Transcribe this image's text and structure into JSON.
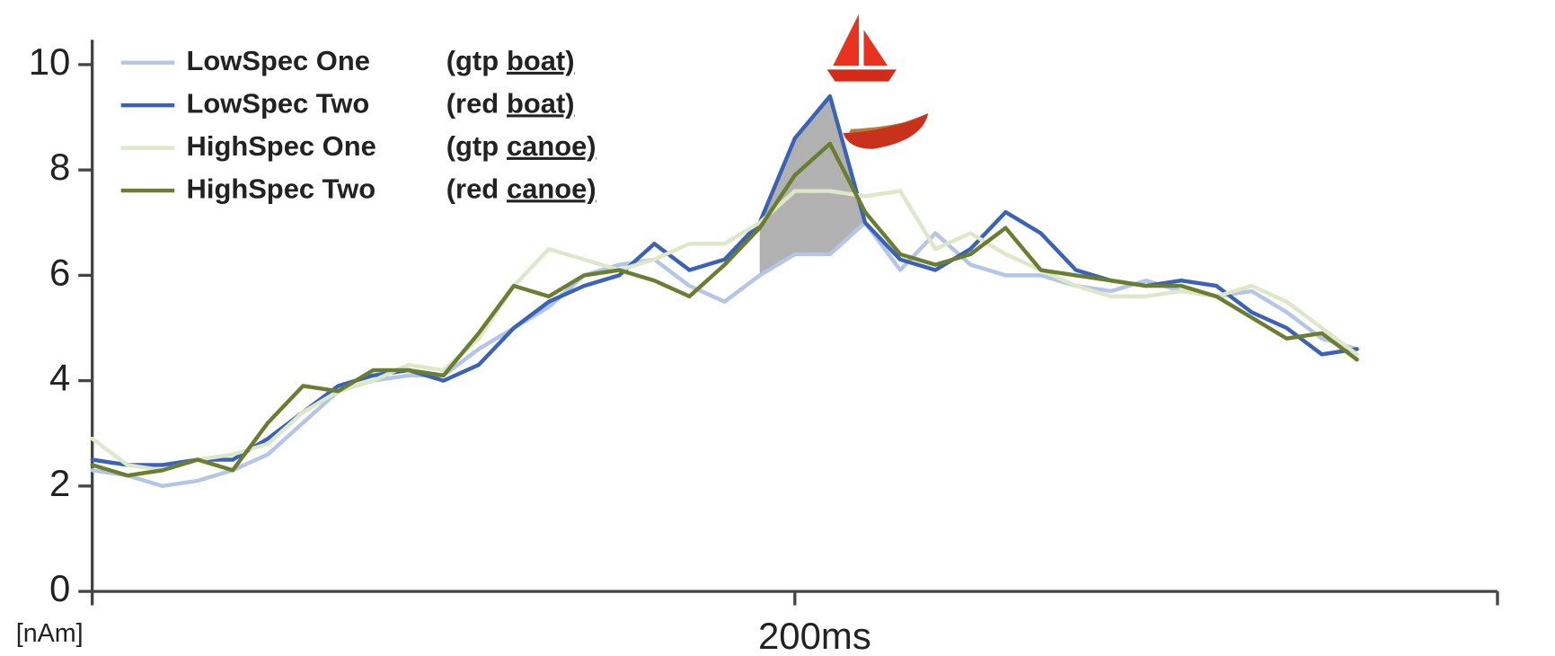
{
  "chart_data": {
    "type": "line",
    "y_unit_label": "[nAm]",
    "x": [
      0,
      10,
      20,
      30,
      40,
      50,
      60,
      70,
      80,
      90,
      100,
      110,
      120,
      130,
      140,
      150,
      160,
      170,
      180,
      190,
      200,
      210,
      220,
      230,
      240,
      250,
      260,
      270,
      280,
      290,
      300,
      310,
      320,
      330,
      340,
      350,
      360
    ],
    "xlim": [
      0,
      400
    ],
    "xticks": [
      {
        "value": 200,
        "label": "200ms"
      }
    ],
    "ylim": [
      0,
      10
    ],
    "yticks": [
      0,
      2,
      4,
      6,
      8,
      10
    ],
    "series": [
      {
        "name": "LowSpec One",
        "tag": "(gtp",
        "object": "boat)",
        "color": "#b4c6e8",
        "values": [
          2.3,
          2.2,
          2.0,
          2.1,
          2.3,
          2.6,
          3.2,
          3.8,
          4.0,
          4.1,
          4.1,
          4.6,
          5.0,
          5.4,
          6.0,
          6.2,
          6.3,
          5.8,
          5.5,
          6.0,
          6.4,
          6.4,
          7.0,
          6.1,
          6.8,
          6.2,
          6.0,
          6.0,
          5.8,
          5.7,
          5.9,
          5.7,
          5.6,
          5.7,
          5.3,
          4.8,
          4.6
        ]
      },
      {
        "name": "LowSpec Two",
        "tag": "(red",
        "object": "boat)",
        "color": "#3a63b8",
        "values": [
          2.5,
          2.4,
          2.4,
          2.5,
          2.5,
          2.9,
          3.4,
          3.9,
          4.1,
          4.2,
          4.0,
          4.3,
          5.0,
          5.5,
          5.8,
          6.0,
          6.6,
          6.1,
          6.3,
          7.0,
          8.6,
          9.4,
          7.0,
          6.3,
          6.1,
          6.5,
          7.2,
          6.8,
          6.1,
          5.9,
          5.8,
          5.9,
          5.8,
          5.3,
          5.0,
          4.5,
          4.6
        ]
      },
      {
        "name": "HighSpec One",
        "tag": "(gtp",
        "object": "canoe)",
        "color": "#dde8c8",
        "values": [
          2.9,
          2.4,
          2.3,
          2.5,
          2.6,
          2.8,
          3.4,
          3.8,
          4.0,
          4.3,
          4.2,
          4.8,
          5.8,
          6.5,
          6.3,
          6.1,
          6.3,
          6.6,
          6.6,
          7.0,
          7.6,
          7.6,
          7.5,
          7.6,
          6.5,
          6.8,
          6.4,
          6.1,
          5.8,
          5.6,
          5.6,
          5.7,
          5.6,
          5.8,
          5.5,
          5.0,
          4.5
        ]
      },
      {
        "name": "HighSpec Two",
        "tag": "(red",
        "object": "canoe)",
        "color": "#6b7d2e",
        "values": [
          2.4,
          2.2,
          2.3,
          2.5,
          2.3,
          3.2,
          3.9,
          3.8,
          4.2,
          4.2,
          4.1,
          4.9,
          5.8,
          5.6,
          6.0,
          6.1,
          5.9,
          5.6,
          6.2,
          6.9,
          7.9,
          8.5,
          7.2,
          6.4,
          6.2,
          6.4,
          6.9,
          6.1,
          6.0,
          5.9,
          5.8,
          5.8,
          5.6,
          5.2,
          4.8,
          4.9,
          4.4
        ]
      }
    ]
  }
}
